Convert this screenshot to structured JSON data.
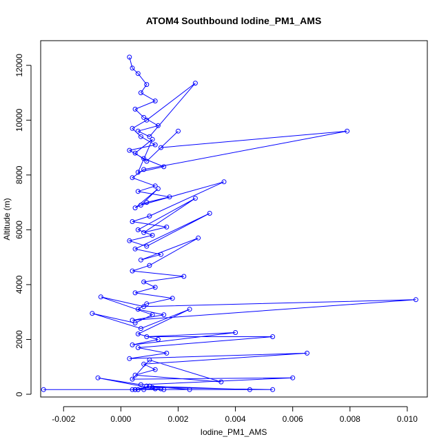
{
  "chart_data": {
    "type": "line",
    "title": "ATOM4 Southbound Iodine_PM1_AMS",
    "xlabel": "Iodine_PM1_AMS",
    "ylabel": "Altitude (m)",
    "xlim": [
      -0.0028,
      0.0107
    ],
    "ylim": [
      -100,
      12900
    ],
    "xticks": [
      -0.002,
      0.0,
      0.002,
      0.004,
      0.006,
      0.008,
      0.01
    ],
    "xtick_labels": [
      "-0.002",
      "0.000",
      "0.002",
      "0.004",
      "0.006",
      "0.008",
      "0.010"
    ],
    "yticks": [
      0,
      2000,
      4000,
      6000,
      8000,
      10000,
      12000
    ],
    "ytick_labels": [
      "0",
      "2000",
      "4000",
      "6000",
      "8000",
      "10000",
      "12000"
    ],
    "grid": false,
    "marker": "open-circle",
    "color": "#0000ff",
    "series": [
      {
        "x": [
          0.0003,
          0.0004,
          0.0006,
          0.0009,
          0.0007,
          0.0012,
          0.0005,
          0.0008,
          0.0013,
          0.0006,
          0.001,
          0.0026,
          0.0009,
          0.0004,
          0.0007,
          0.0012,
          0.0003,
          0.0008,
          0.0015,
          0.0006,
          0.0011,
          0.0005,
          0.0009,
          0.002,
          0.0014,
          0.0079,
          0.0008,
          0.0004,
          0.0012,
          0.0006,
          0.0017,
          0.0009,
          0.0005,
          0.0013,
          0.0007,
          0.0036,
          0.001,
          0.0004,
          0.0016,
          0.0008,
          0.0026,
          0.0006,
          0.0011,
          0.0003,
          0.0009,
          0.0031,
          0.0005,
          0.0014,
          0.0007,
          0.0027,
          0.001,
          0.0004,
          0.0022,
          0.0008,
          0.0012,
          0.0005,
          0.0018,
          0.0009,
          0.0006,
          0.0015,
          0.0004,
          0.0103,
          0.0008,
          -0.0007,
          0.0011,
          0.0005,
          -0.001,
          0.0007,
          0.0024,
          0.0006,
          0.0013,
          0.0004,
          0.004,
          0.0009,
          0.0053,
          0.0006,
          0.0016,
          0.0003,
          0.0065,
          0.0008,
          0.0012,
          0.0005,
          0.0035,
          0.001,
          0.0004,
          0.006,
          0.0007,
          -0.0008,
          0.0012,
          0.0006,
          0.0045,
          0.0009,
          0.0024,
          0.0005,
          -0.0027,
          0.0015,
          0.0004,
          0.0011,
          0.0053,
          0.0008,
          0.0014,
          0.0006,
          0.001,
          0.0005
        ],
        "y": [
          12300,
          11900,
          11700,
          11300,
          11000,
          10700,
          10400,
          10100,
          9800,
          9600,
          9400,
          11350,
          10000,
          9700,
          9400,
          9100,
          8900,
          8600,
          8300,
          8100,
          9300,
          8800,
          8500,
          9600,
          9000,
          9600,
          8200,
          7900,
          7600,
          7400,
          7200,
          7000,
          6800,
          7500,
          6900,
          7750,
          6500,
          6300,
          6100,
          5900,
          7150,
          6000,
          5800,
          5600,
          5400,
          6600,
          5300,
          5100,
          4900,
          5700,
          4700,
          4500,
          4300,
          4100,
          3900,
          3700,
          3500,
          3300,
          3100,
          2900,
          2700,
          3450,
          3200,
          3550,
          2900,
          2600,
          2950,
          2400,
          3100,
          2200,
          2000,
          1800,
          2250,
          2100,
          2100,
          1700,
          1500,
          1300,
          1500,
          1100,
          900,
          700,
          450,
          1250,
          550,
          600,
          350,
          600,
          200,
          170,
          170,
          300,
          170,
          170,
          170,
          170,
          170,
          250,
          170,
          170,
          200,
          170,
          300,
          170
        ]
      }
    ]
  }
}
